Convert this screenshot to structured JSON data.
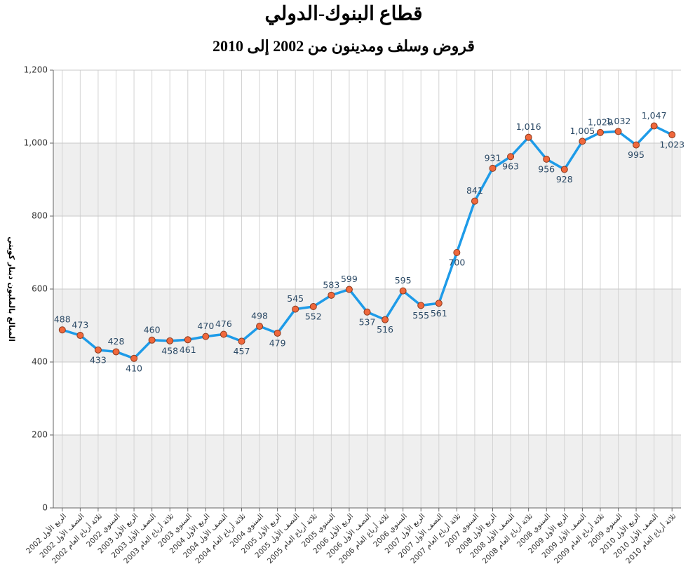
{
  "chart_data": {
    "type": "line",
    "title": "قطاع البنوك-الدولي",
    "subtitle": "قروض وسلف ومدينون من 2002 إلى 2010",
    "y_label": "المبالغ بالمليون دينار كويتي",
    "categories": [
      "الربع الأول 2002",
      "النصف الأول 2002",
      "ثلاثة أرباع العام 2002",
      "السنوي 2002",
      "الربع الأول 2003",
      "النصف الأول 2003",
      "ثلاثة أرباع العام 2003",
      "السنوي 2003",
      "الربع الأول 2004",
      "النصف الأول 2004",
      "ثلاثة أرباع العام 2004",
      "السنوي 2004",
      "الربع الأول 2005",
      "النصف الأول 2005",
      "ثلاثة أرباع العام 2005",
      "السنوي 2005",
      "الربع الأول 2006",
      "النصف الأول 2006",
      "ثلاثة أرباع العام 2006",
      "السنوي 2006",
      "الربع الأول 2007",
      "النصف الأول 2007",
      "ثلاثة أرباع العام 2007",
      "السنوي 2007",
      "الربع الأول 2008",
      "النصف الأول 2008",
      "ثلاثة أرباع العام 2008",
      "السنوي 2008",
      "الربع الأول 2009",
      "النصف الأول 2009",
      "ثلاثة أرباع العام 2009",
      "السنوي 2009",
      "الربع الأول 2010",
      "النصف الأول 2010",
      "ثلاثة أرباع العام 2010"
    ],
    "values": [
      488,
      473,
      433,
      428,
      410,
      460,
      458,
      461,
      470,
      476,
      457,
      498,
      479,
      545,
      552,
      583,
      599,
      537,
      516,
      595,
      555,
      561,
      700,
      841,
      931,
      963,
      1016,
      956,
      928,
      1005,
      1029,
      1032,
      995,
      1047,
      1023
    ],
    "value_labels": [
      "488",
      "473",
      "433",
      "428",
      "410",
      "460",
      "458",
      "461",
      "470",
      "476",
      "457",
      "498",
      "479",
      "545",
      "552",
      "583",
      "599",
      "537",
      "516",
      "595",
      "555",
      "561",
      "700",
      "841",
      "931",
      "963",
      "1,016",
      "956",
      "928",
      "1,005",
      "1,029",
      "1,032",
      "995",
      "1,047",
      "1,023"
    ],
    "color": "#1e9be8",
    "marker_color": "#f0683c",
    "ylim": [
      0,
      1200
    ],
    "yticks": [
      0,
      200,
      400,
      600,
      800,
      {
        "value": 1000,
        "label": "1,000"
      },
      {
        "value": 1200,
        "label": "1,200"
      }
    ],
    "grid": true
  }
}
